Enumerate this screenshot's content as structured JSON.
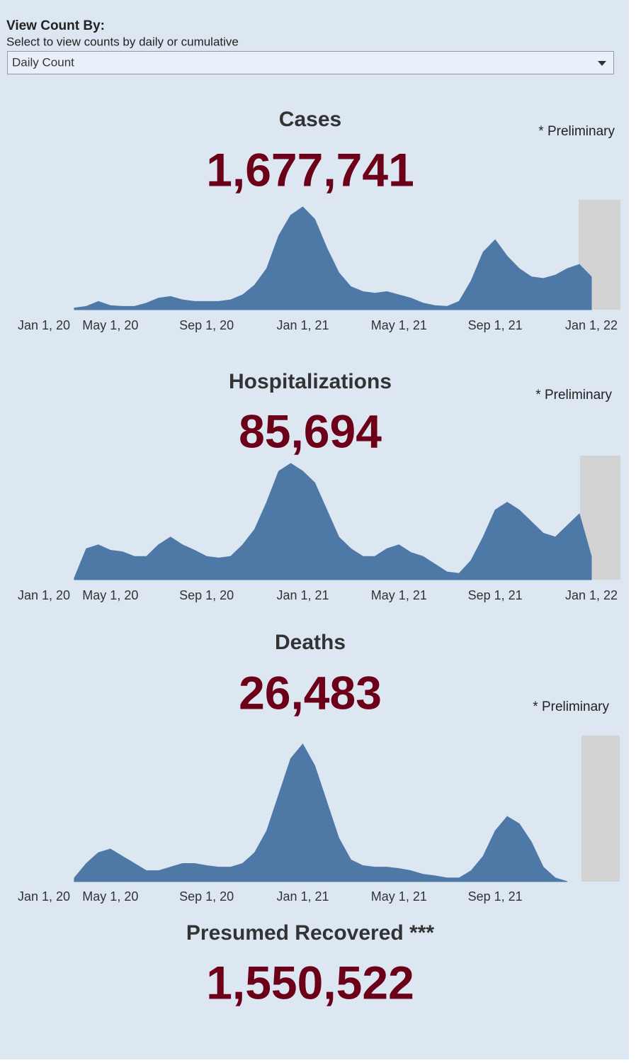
{
  "header": {
    "label": "View Count By:",
    "hint": "Select to view counts by daily or cumulative",
    "selected": "Daily Count"
  },
  "chart_data": [
    {
      "type": "area",
      "title": "Cases",
      "total": "1,677,741",
      "note": "* Preliminary",
      "color": "#4e79a7",
      "categories": [
        "Jan 1, 20",
        null,
        null,
        null,
        null,
        null,
        null,
        null,
        "May 1, 20",
        null,
        null,
        null,
        null,
        null,
        null,
        null,
        "Sep 1, 20",
        null,
        null,
        null,
        null,
        null,
        null,
        null,
        "Jan 1, 21",
        null,
        null,
        null,
        null,
        null,
        null,
        null,
        "May 1, 21",
        null,
        null,
        null,
        null,
        null,
        null,
        null,
        "Sep 1, 21",
        null,
        null,
        null,
        null,
        null,
        null,
        null,
        "Jan 1, 22"
      ],
      "values": [
        null,
        null,
        null,
        null,
        null,
        2,
        4,
        10,
        5,
        4,
        4,
        8,
        14,
        16,
        12,
        10,
        10,
        10,
        12,
        18,
        30,
        50,
        90,
        115,
        125,
        110,
        75,
        45,
        28,
        22,
        20,
        22,
        18,
        14,
        8,
        5,
        4,
        10,
        35,
        70,
        85,
        65,
        50,
        40,
        38,
        42,
        50,
        55,
        40
      ]
    },
    {
      "type": "area",
      "title": "Hospitalizations",
      "total": "85,694",
      "note": "* Preliminary",
      "color": "#4e79a7",
      "categories": [
        "Jan 1, 20",
        null,
        null,
        null,
        null,
        null,
        null,
        null,
        "May 1, 20",
        null,
        null,
        null,
        null,
        null,
        null,
        null,
        "Sep 1, 20",
        null,
        null,
        null,
        null,
        null,
        null,
        null,
        "Jan 1, 21",
        null,
        null,
        null,
        null,
        null,
        null,
        null,
        "May 1, 21",
        null,
        null,
        null,
        null,
        null,
        null,
        null,
        "Sep 1, 21",
        null,
        null,
        null,
        null,
        null,
        null,
        null,
        "Jan 1, 22"
      ],
      "values": [
        null,
        null,
        null,
        null,
        null,
        2,
        40,
        45,
        38,
        36,
        30,
        30,
        45,
        55,
        45,
        38,
        30,
        28,
        30,
        45,
        65,
        100,
        140,
        150,
        140,
        125,
        90,
        55,
        40,
        30,
        30,
        40,
        45,
        35,
        30,
        20,
        10,
        8,
        25,
        55,
        90,
        100,
        90,
        75,
        60,
        55,
        70,
        85,
        30
      ]
    },
    {
      "type": "area",
      "title": "Deaths",
      "total": "26,483",
      "note": "* Preliminary",
      "color": "#4e79a7",
      "categories": [
        "Jan 1, 20",
        null,
        null,
        null,
        null,
        null,
        null,
        null,
        "May 1, 20",
        null,
        null,
        null,
        null,
        null,
        null,
        null,
        "Sep 1, 20",
        null,
        null,
        null,
        null,
        null,
        null,
        null,
        "Jan 1, 21",
        null,
        null,
        null,
        null,
        null,
        null,
        null,
        "May 1, 21",
        null,
        null,
        null,
        null,
        null,
        null,
        null,
        "Sep 1, 21",
        null,
        null,
        null,
        null,
        null,
        null,
        null,
        null
      ],
      "values": [
        null,
        null,
        null,
        null,
        null,
        5,
        25,
        40,
        45,
        35,
        25,
        15,
        15,
        20,
        25,
        25,
        22,
        20,
        20,
        25,
        40,
        70,
        120,
        170,
        190,
        160,
        110,
        60,
        30,
        22,
        20,
        20,
        18,
        15,
        10,
        8,
        5,
        5,
        15,
        35,
        70,
        90,
        80,
        55,
        20,
        5,
        0,
        null,
        null
      ]
    }
  ],
  "recovered": {
    "title": "Presumed Recovered ***",
    "total": "1,550,522"
  }
}
